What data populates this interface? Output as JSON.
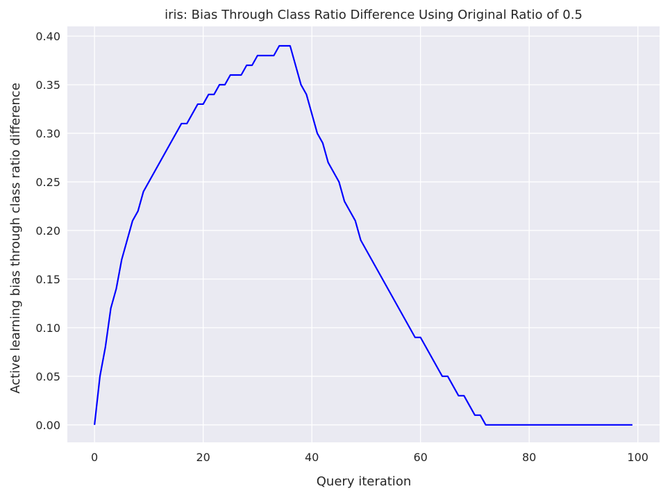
{
  "chart_data": {
    "type": "line",
    "title": "iris: Bias Through Class Ratio Difference Using Original Ratio of 0.5",
    "xlabel": "Query iteration",
    "ylabel": "Active learning bias through class ratio difference",
    "xlim": [
      -5,
      104
    ],
    "ylim": [
      -0.018,
      0.41
    ],
    "xticks": [
      0,
      20,
      40,
      60,
      80,
      100
    ],
    "xtick_labels": [
      "0",
      "20",
      "40",
      "60",
      "80",
      "100"
    ],
    "yticks": [
      0.0,
      0.05,
      0.1,
      0.15,
      0.2,
      0.25,
      0.3,
      0.35,
      0.4
    ],
    "ytick_labels": [
      "0.00",
      "0.05",
      "0.10",
      "0.15",
      "0.20",
      "0.25",
      "0.30",
      "0.35",
      "0.40"
    ],
    "grid": true,
    "colors": {
      "background": "#eaeaf2",
      "grid": "#ffffff",
      "line": "#0000ff"
    },
    "series": [
      {
        "x": [
          0,
          1,
          2,
          3,
          4,
          5,
          6,
          7,
          8,
          9,
          16,
          17,
          19,
          20,
          21,
          22,
          23,
          24,
          25,
          26,
          27,
          28,
          29,
          30,
          31,
          32,
          33,
          34,
          35,
          36,
          38,
          39,
          41,
          42,
          43,
          45,
          46,
          48,
          49,
          59,
          60,
          64,
          65,
          67,
          68,
          70,
          71,
          72,
          99
        ],
        "y": [
          0.0,
          0.05,
          0.08,
          0.12,
          0.14,
          0.17,
          0.19,
          0.21,
          0.22,
          0.24,
          0.31,
          0.31,
          0.33,
          0.33,
          0.34,
          0.34,
          0.35,
          0.35,
          0.36,
          0.36,
          0.36,
          0.37,
          0.37,
          0.38,
          0.38,
          0.38,
          0.38,
          0.39,
          0.39,
          0.39,
          0.35,
          0.34,
          0.3,
          0.29,
          0.27,
          0.25,
          0.23,
          0.21,
          0.19,
          0.09,
          0.09,
          0.05,
          0.05,
          0.03,
          0.03,
          0.01,
          0.01,
          0.0,
          0.0
        ]
      }
    ]
  }
}
